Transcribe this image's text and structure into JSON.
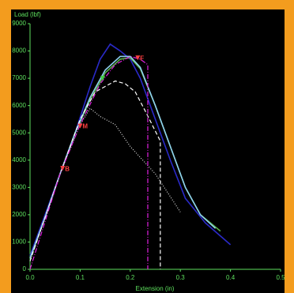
{
  "chart_data": {
    "type": "line",
    "y_label": "Load (lbf)",
    "x_label": "Extension (in)",
    "xlim": [
      0,
      0.5
    ],
    "ylim": [
      0,
      9000
    ],
    "xticks": [
      {
        "value": 0,
        "label": "0.0"
      },
      {
        "value": 0.1,
        "label": "0.1"
      },
      {
        "value": 0.2,
        "label": "0.2"
      },
      {
        "value": 0.3,
        "label": "0.3"
      },
      {
        "value": 0.4,
        "label": "0.4"
      },
      {
        "value": 0.5,
        "label": "0.5"
      }
    ],
    "yticks": [
      0,
      1000,
      2000,
      3000,
      4000,
      5000,
      6000,
      7000,
      8000,
      9000
    ],
    "grid": false,
    "series": [
      {
        "color": "#2a2ac8",
        "dash": "none",
        "x": [
          0,
          0.03,
          0.06,
          0.09,
          0.12,
          0.14,
          0.16,
          0.18,
          0.2,
          0.22,
          0.25,
          0.28,
          0.31,
          0.35,
          0.4
        ],
        "values": [
          500,
          2000,
          3500,
          5000,
          6700,
          7700,
          8250,
          8000,
          7700,
          7000,
          5500,
          4000,
          2600,
          1700,
          900
        ]
      },
      {
        "color": "#5ab04a",
        "dash": "none",
        "x": [
          0,
          0.03,
          0.06,
          0.09,
          0.12,
          0.15,
          0.18,
          0.2,
          0.22,
          0.25,
          0.28,
          0.31,
          0.34,
          0.38
        ],
        "values": [
          400,
          1900,
          3500,
          5000,
          6200,
          7200,
          7700,
          7750,
          7350,
          6000,
          4500,
          3000,
          2000,
          1400
        ]
      },
      {
        "color": "#8fd0f0",
        "dash": "none",
        "x": [
          0,
          0.03,
          0.06,
          0.09,
          0.12,
          0.15,
          0.18,
          0.2,
          0.22,
          0.25,
          0.28,
          0.31,
          0.34,
          0.37
        ],
        "values": [
          400,
          1900,
          3500,
          5000,
          6300,
          7300,
          7800,
          7800,
          7400,
          6000,
          4500,
          3000,
          2000,
          1500
        ]
      },
      {
        "color": "#ffffff",
        "dash": "5,3",
        "x": [
          0,
          0.06,
          0.1,
          0.13,
          0.15,
          0.17,
          0.19,
          0.21,
          0.23,
          0.26,
          0.26
        ],
        "values": [
          300,
          3500,
          5500,
          6500,
          6700,
          6900,
          6800,
          6500,
          5800,
          4700,
          0
        ]
      },
      {
        "color": "#dddddd",
        "dash": "1,2",
        "x": [
          0,
          0.06,
          0.1,
          0.12,
          0.14,
          0.17,
          0.2,
          0.25,
          0.3
        ],
        "values": [
          300,
          3500,
          5300,
          5900,
          5600,
          5300,
          4500,
          3500,
          2100
        ]
      },
      {
        "color": "#e020e0",
        "dash": "6,2,1,2",
        "x": [
          0,
          0.06,
          0.1,
          0.14,
          0.17,
          0.2,
          0.22,
          0.235,
          0.235
        ],
        "values": [
          0,
          3500,
          5300,
          6800,
          7500,
          7800,
          7700,
          7500,
          0
        ]
      }
    ],
    "annotations": [
      {
        "label": "B",
        "x": 0.065,
        "y": 3700,
        "color": "#ff4040"
      },
      {
        "label": "M",
        "x": 0.1,
        "y": 5250,
        "color": "#ff4040"
      },
      {
        "label": "F",
        "x": 0.215,
        "y": 7750,
        "color": "#ff4040"
      },
      {
        "x": 0.145,
        "y": 7000,
        "color": "#40d040"
      }
    ]
  }
}
